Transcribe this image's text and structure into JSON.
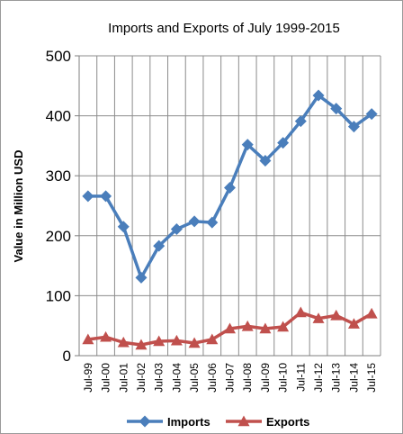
{
  "chart_data": {
    "type": "line",
    "title": "Imports and Exports of July 1999-2015",
    "xlabel": "",
    "ylabel": "Value in  Million  USD",
    "ylim": [
      0,
      500
    ],
    "yticks": [
      0,
      100,
      200,
      300,
      400,
      500
    ],
    "grid": true,
    "legend_position": "bottom",
    "categories": [
      "Jul-99",
      "Jul-00",
      "Jul-01",
      "Jul-02",
      "Jul-03",
      "Jul-04",
      "Jul-05",
      "Jul-06",
      "Jul-07",
      "Jul-08",
      "Jul-09",
      "Jul-10",
      "Jul-11",
      "Jul-12",
      "Jul-13",
      "Jul-14",
      "Jul-15"
    ],
    "series": [
      {
        "name": "Imports",
        "color": "#4a7ebb",
        "marker": "diamond",
        "values": [
          266,
          266,
          215,
          130,
          183,
          211,
          224,
          222,
          280,
          352,
          325,
          355,
          391,
          434,
          412,
          382,
          403
        ]
      },
      {
        "name": "Exports",
        "color": "#c0504d",
        "marker": "triangle",
        "values": [
          27,
          31,
          22,
          18,
          24,
          25,
          21,
          27,
          45,
          49,
          45,
          48,
          72,
          62,
          67,
          53,
          70
        ]
      }
    ]
  }
}
